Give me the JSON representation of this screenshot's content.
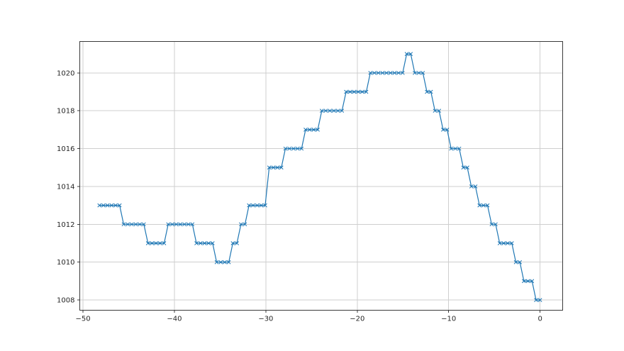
{
  "figure": {
    "background": "#ffffff",
    "title": ""
  },
  "chart_data": {
    "type": "line",
    "title": "",
    "xlabel": "",
    "ylabel": "",
    "grid": true,
    "legend": false,
    "line_color": "#1f77b4",
    "marker": "x",
    "marker_size": 5,
    "grid_color": "#cfcfcf",
    "spine_color": "#3a3a3a",
    "tick_color": "#262626",
    "xlim": [
      -50.35,
      2.47
    ],
    "ylim": [
      1007.46,
      1021.66
    ],
    "x_ticks": [
      -50,
      -40,
      -30,
      -20,
      -10,
      0
    ],
    "x_tick_labels": [
      "−50",
      "−40",
      "−30",
      "−20",
      "−10",
      "0"
    ],
    "y_ticks": [
      1008,
      1010,
      1012,
      1014,
      1016,
      1018,
      1020
    ],
    "y_tick_labels": [
      "1008",
      "1010",
      "1012",
      "1014",
      "1016",
      "1018",
      "1020"
    ],
    "x": [
      -48.2,
      -47.76,
      -47.32,
      -46.87,
      -46.43,
      -45.99,
      -45.55,
      -45.1,
      -44.66,
      -44.22,
      -43.78,
      -43.34,
      -42.89,
      -42.45,
      -42.01,
      -41.57,
      -41.12,
      -40.68,
      -40.24,
      -39.8,
      -39.36,
      -38.91,
      -38.47,
      -38.03,
      -37.59,
      -37.14,
      -36.7,
      -36.26,
      -35.82,
      -35.38,
      -34.93,
      -34.49,
      -34.05,
      -33.61,
      -33.16,
      -32.72,
      -32.28,
      -31.84,
      -31.4,
      -30.95,
      -30.51,
      -30.07,
      -29.63,
      -29.18,
      -28.74,
      -28.3,
      -27.86,
      -27.42,
      -26.97,
      -26.53,
      -26.09,
      -25.65,
      -25.2,
      -24.76,
      -24.32,
      -23.88,
      -23.44,
      -22.99,
      -22.55,
      -22.11,
      -21.67,
      -21.22,
      -20.78,
      -20.34,
      -19.9,
      -19.46,
      -19.01,
      -18.57,
      -18.13,
      -17.69,
      -17.24,
      -16.8,
      -16.36,
      -15.92,
      -15.48,
      -15.03,
      -14.59,
      -14.15,
      -13.71,
      -13.26,
      -12.82,
      -12.38,
      -11.94,
      -11.5,
      -11.05,
      -10.61,
      -10.17,
      -9.73,
      -9.28,
      -8.84,
      -8.4,
      -7.96,
      -7.52,
      -7.07,
      -6.63,
      -6.19,
      -5.75,
      -5.3,
      -4.86,
      -4.42,
      -3.98,
      -3.54,
      -3.09,
      -2.65,
      -2.21,
      -1.77,
      -1.33,
      -0.88,
      -0.44,
      0
    ],
    "y": [
      1013,
      1013,
      1013,
      1013,
      1013,
      1013,
      1012,
      1012,
      1012,
      1012,
      1012,
      1012,
      1011,
      1011,
      1011,
      1011,
      1011,
      1012,
      1012,
      1012,
      1012,
      1012,
      1012,
      1012,
      1011,
      1011,
      1011,
      1011,
      1011,
      1010,
      1010,
      1010,
      1010,
      1011,
      1011,
      1012,
      1012,
      1013,
      1013,
      1013,
      1013,
      1013,
      1015,
      1015,
      1015,
      1015,
      1016,
      1016,
      1016,
      1016,
      1016,
      1017,
      1017,
      1017,
      1017,
      1018,
      1018,
      1018,
      1018,
      1018,
      1018,
      1019,
      1019,
      1019,
      1019,
      1019,
      1019,
      1020,
      1020,
      1020,
      1020,
      1020,
      1020,
      1020,
      1020,
      1020,
      1021,
      1021,
      1020,
      1020,
      1020,
      1019,
      1019,
      1018,
      1018,
      1017,
      1017,
      1016,
      1016,
      1016,
      1015,
      1015,
      1014,
      1014,
      1013,
      1013,
      1013,
      1012,
      1012,
      1011,
      1011,
      1011,
      1011,
      1010,
      1010,
      1009,
      1009,
      1009,
      1008,
      1008
    ]
  }
}
